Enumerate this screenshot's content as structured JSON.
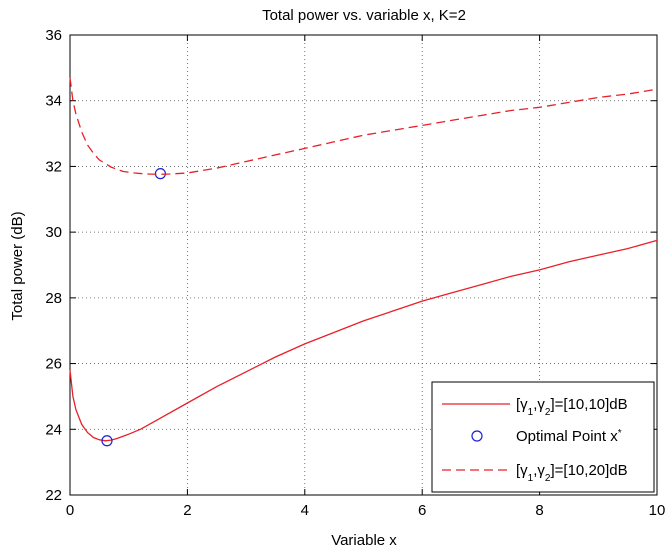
{
  "chart_data": {
    "type": "line",
    "title": "Total power vs. variable x, K=2",
    "xlabel": "Variable x",
    "ylabel": "Total power (dB)",
    "xlim": [
      0,
      10
    ],
    "ylim": [
      22,
      36
    ],
    "xticks": [
      "0",
      "2",
      "4",
      "6",
      "8",
      "10"
    ],
    "yticks": [
      "22",
      "24",
      "26",
      "28",
      "30",
      "32",
      "34",
      "36"
    ],
    "grid": true,
    "legend_position": "bottom-right",
    "series": [
      {
        "name": "[γ1,γ2]=[10,10]dB",
        "color": "#e8202a",
        "style": "solid",
        "x": [
          0,
          0.05,
          0.1,
          0.2,
          0.3,
          0.4,
          0.5,
          0.6,
          0.7,
          0.8,
          1.0,
          1.2,
          1.5,
          2,
          2.5,
          3,
          3.5,
          4,
          4.5,
          5,
          5.5,
          6,
          6.5,
          7,
          7.5,
          8,
          8.5,
          9,
          9.5,
          10
        ],
        "y": [
          25.8,
          25.0,
          24.6,
          24.15,
          23.9,
          23.75,
          23.68,
          23.65,
          23.67,
          23.72,
          23.85,
          24.0,
          24.3,
          24.8,
          25.3,
          25.75,
          26.2,
          26.6,
          26.95,
          27.3,
          27.6,
          27.9,
          28.15,
          28.4,
          28.65,
          28.85,
          29.1,
          29.3,
          29.5,
          29.75
        ]
      },
      {
        "name": "Optimal Point x*",
        "color": "#1f1fd6",
        "style": "marker",
        "x": [
          0.63,
          1.54
        ],
        "y": [
          23.65,
          31.78
        ]
      },
      {
        "name": "[γ1,γ2]=[10,20]dB",
        "color": "#e8202a",
        "style": "dashed",
        "x": [
          0,
          0.05,
          0.1,
          0.2,
          0.3,
          0.4,
          0.5,
          0.7,
          0.9,
          1.1,
          1.3,
          1.5,
          1.7,
          2.0,
          2.5,
          3,
          3.5,
          4,
          4.5,
          5,
          5.5,
          6,
          6.5,
          7,
          7.5,
          8,
          8.5,
          9,
          9.5,
          10
        ],
        "y": [
          34.7,
          34.0,
          33.6,
          33.05,
          32.65,
          32.4,
          32.2,
          31.98,
          31.85,
          31.8,
          31.77,
          31.76,
          31.77,
          31.8,
          31.95,
          32.15,
          32.35,
          32.55,
          32.75,
          32.95,
          33.1,
          33.25,
          33.4,
          33.55,
          33.7,
          33.8,
          33.95,
          34.1,
          34.2,
          34.35
        ]
      }
    ]
  }
}
